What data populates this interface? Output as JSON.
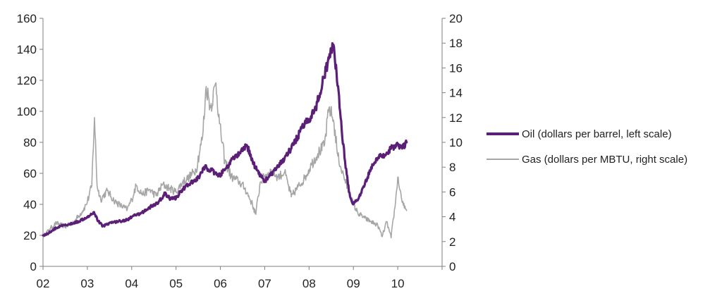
{
  "chart_data": {
    "type": "line",
    "title": "",
    "xlabel": "",
    "ylabel": "",
    "y2label": "",
    "xlim": [
      2002,
      2011
    ],
    "ylim": [
      0,
      160
    ],
    "y2lim": [
      0,
      20
    ],
    "x_tick_labels": [
      {
        "x": 2002,
        "label": "02"
      },
      {
        "x": 2003,
        "label": "03"
      },
      {
        "x": 2004,
        "label": "04"
      },
      {
        "x": 2005,
        "label": "05"
      },
      {
        "x": 2006,
        "label": "06"
      },
      {
        "x": 2007,
        "label": "07"
      },
      {
        "x": 2008,
        "label": "08"
      },
      {
        "x": 2009,
        "label": "09"
      },
      {
        "x": 2010,
        "label": "10"
      }
    ],
    "y_ticks": [
      0,
      20,
      40,
      60,
      80,
      100,
      120,
      140,
      160
    ],
    "y2_ticks": [
      0,
      2,
      4,
      6,
      8,
      10,
      12,
      14,
      16,
      18,
      20
    ],
    "grid": false,
    "legend_position": "right",
    "series": [
      {
        "name": "Oil (dollars per barrel, left scale)",
        "axis": "left",
        "color": "#5b1f78",
        "points": [
          [
            2002.0,
            20
          ],
          [
            2002.1,
            21
          ],
          [
            2002.25,
            24
          ],
          [
            2002.4,
            26
          ],
          [
            2002.6,
            27
          ],
          [
            2002.8,
            29
          ],
          [
            2003.0,
            32
          ],
          [
            2003.15,
            35
          ],
          [
            2003.25,
            29
          ],
          [
            2003.35,
            26
          ],
          [
            2003.5,
            28
          ],
          [
            2003.7,
            29
          ],
          [
            2003.9,
            30
          ],
          [
            2004.0,
            32
          ],
          [
            2004.2,
            34
          ],
          [
            2004.4,
            38
          ],
          [
            2004.6,
            41
          ],
          [
            2004.75,
            47
          ],
          [
            2004.85,
            44
          ],
          [
            2005.0,
            44
          ],
          [
            2005.15,
            50
          ],
          [
            2005.3,
            53
          ],
          [
            2005.5,
            57
          ],
          [
            2005.65,
            64
          ],
          [
            2005.8,
            62
          ],
          [
            2005.95,
            58
          ],
          [
            2006.1,
            62
          ],
          [
            2006.3,
            70
          ],
          [
            2006.45,
            73
          ],
          [
            2006.6,
            78
          ],
          [
            2006.75,
            66
          ],
          [
            2006.9,
            59
          ],
          [
            2007.0,
            55
          ],
          [
            2007.1,
            58
          ],
          [
            2007.3,
            64
          ],
          [
            2007.45,
            70
          ],
          [
            2007.6,
            76
          ],
          [
            2007.75,
            84
          ],
          [
            2007.9,
            92
          ],
          [
            2008.0,
            95
          ],
          [
            2008.15,
            102
          ],
          [
            2008.3,
            118
          ],
          [
            2008.45,
            134
          ],
          [
            2008.55,
            143
          ],
          [
            2008.62,
            125
          ],
          [
            2008.7,
            100
          ],
          [
            2008.8,
            70
          ],
          [
            2008.9,
            48
          ],
          [
            2009.0,
            40
          ],
          [
            2009.12,
            44
          ],
          [
            2009.25,
            52
          ],
          [
            2009.4,
            64
          ],
          [
            2009.55,
            70
          ],
          [
            2009.7,
            72
          ],
          [
            2009.85,
            76
          ],
          [
            2010.0,
            79
          ],
          [
            2010.1,
            76
          ],
          [
            2010.2,
            80
          ]
        ]
      },
      {
        "name": "Gas (dollars per MBTU, right scale)",
        "axis": "right",
        "color": "#a6a6a6",
        "points": [
          [
            2002.0,
            2.4
          ],
          [
            2002.15,
            3.0
          ],
          [
            2002.3,
            3.5
          ],
          [
            2002.5,
            3.2
          ],
          [
            2002.7,
            3.6
          ],
          [
            2002.9,
            4.5
          ],
          [
            2003.0,
            5.2
          ],
          [
            2003.1,
            6.5
          ],
          [
            2003.16,
            12.0
          ],
          [
            2003.22,
            6.5
          ],
          [
            2003.3,
            5.4
          ],
          [
            2003.45,
            6.1
          ],
          [
            2003.6,
            5.3
          ],
          [
            2003.75,
            4.9
          ],
          [
            2003.9,
            4.6
          ],
          [
            2004.0,
            5.4
          ],
          [
            2004.1,
            6.5
          ],
          [
            2004.25,
            5.8
          ],
          [
            2004.4,
            6.2
          ],
          [
            2004.55,
            5.7
          ],
          [
            2004.7,
            6.6
          ],
          [
            2004.85,
            6.3
          ],
          [
            2005.0,
            6.0
          ],
          [
            2005.15,
            6.8
          ],
          [
            2005.3,
            7.2
          ],
          [
            2005.45,
            7.8
          ],
          [
            2005.6,
            10.5
          ],
          [
            2005.68,
            14.5
          ],
          [
            2005.78,
            12.8
          ],
          [
            2005.9,
            14.8
          ],
          [
            2005.98,
            11.5
          ],
          [
            2006.1,
            8.5
          ],
          [
            2006.25,
            7.2
          ],
          [
            2006.4,
            6.9
          ],
          [
            2006.55,
            6.3
          ],
          [
            2006.7,
            5.2
          ],
          [
            2006.8,
            4.2
          ],
          [
            2006.9,
            6.8
          ],
          [
            2007.0,
            7.3
          ],
          [
            2007.15,
            7.7
          ],
          [
            2007.3,
            7.2
          ],
          [
            2007.45,
            7.6
          ],
          [
            2007.6,
            5.6
          ],
          [
            2007.75,
            6.4
          ],
          [
            2007.9,
            7.1
          ],
          [
            2008.05,
            8.2
          ],
          [
            2008.2,
            9.1
          ],
          [
            2008.35,
            9.8
          ],
          [
            2008.45,
            12.8
          ],
          [
            2008.55,
            11.8
          ],
          [
            2008.65,
            8.9
          ],
          [
            2008.75,
            7.6
          ],
          [
            2008.9,
            6.0
          ],
          [
            2009.0,
            5.0
          ],
          [
            2009.1,
            4.3
          ],
          [
            2009.25,
            3.9
          ],
          [
            2009.4,
            3.6
          ],
          [
            2009.55,
            3.3
          ],
          [
            2009.65,
            2.4
          ],
          [
            2009.75,
            3.6
          ],
          [
            2009.85,
            2.3
          ],
          [
            2009.95,
            5.2
          ],
          [
            2010.0,
            7.2
          ],
          [
            2010.08,
            5.6
          ],
          [
            2010.15,
            4.7
          ],
          [
            2010.2,
            4.5
          ]
        ]
      }
    ]
  }
}
